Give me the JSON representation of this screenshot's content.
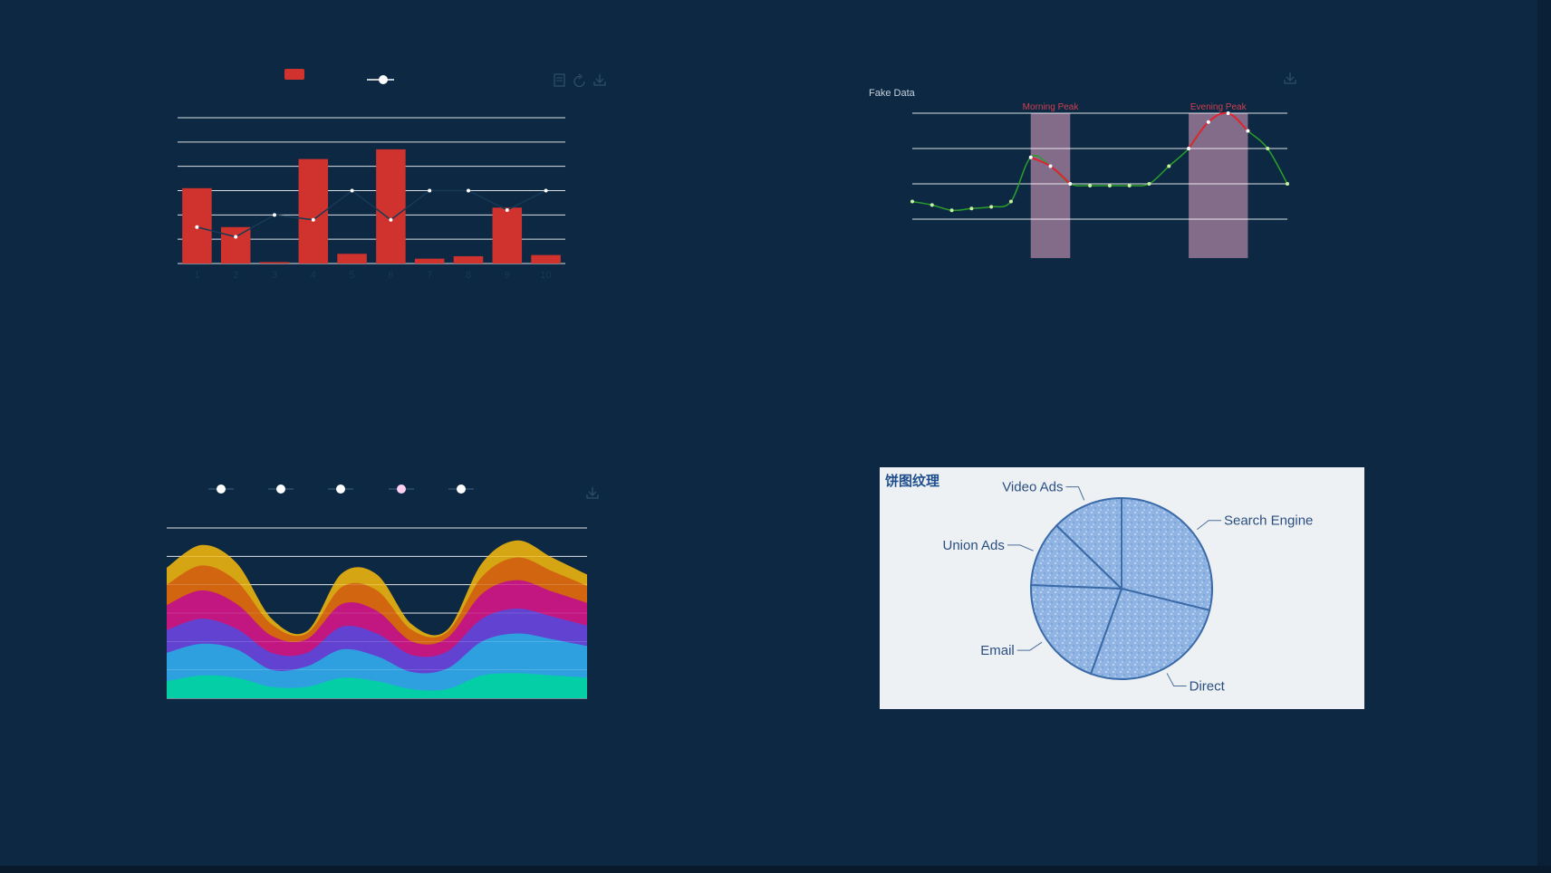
{
  "colors": {
    "background": "#0c2843",
    "bar_red": "#d0322e",
    "line_dark": "#173a55",
    "line_green": "#2aa02a",
    "line_red": "#e0242f",
    "mark_area": "#8a6f8e",
    "stream": [
      "#00d1a0",
      "#2aa8e0",
      "#5a48d8",
      "#c0108a",
      "#d06010",
      "#e8b010"
    ],
    "pie_fill": "#8fb4e3",
    "pie_stroke": "#3a6aa8",
    "pie_bg": "#eef1f4"
  },
  "toolbar_icons": [
    "data-view-icon",
    "restore-icon",
    "save-image-icon"
  ],
  "chart_data": [
    {
      "type": "bar",
      "categories": [
        "1",
        "2",
        "3",
        "4",
        "5",
        "6",
        "7",
        "8",
        "9",
        "10"
      ],
      "series": [
        {
          "type": "bar",
          "values": [
            31,
            15,
            0.6,
            43,
            4,
            47,
            2,
            3,
            23,
            3.5
          ]
        },
        {
          "type": "line",
          "values": [
            15,
            11,
            20,
            18,
            30,
            18,
            30,
            30,
            22,
            30
          ]
        }
      ],
      "ylim": [
        0,
        60
      ],
      "grid": true,
      "legend": "top-center"
    },
    {
      "type": "line",
      "title": "",
      "ylabel": "Fake Data",
      "x": [
        0,
        1,
        2,
        3,
        4,
        5,
        6,
        7,
        8,
        9,
        10,
        11,
        12,
        13,
        14,
        15,
        16,
        17,
        18,
        19
      ],
      "values": [
        300,
        280,
        250,
        260,
        270,
        300,
        550,
        500,
        400,
        390,
        390,
        390,
        400,
        500,
        600,
        750,
        800,
        700,
        600,
        400
      ],
      "ylim": [
        0,
        800
      ],
      "mark_areas": [
        {
          "label": "Morning Peak",
          "from": 6,
          "to": 8
        },
        {
          "label": "Evening Peak",
          "from": 14,
          "to": 17
        }
      ],
      "grid": true
    },
    {
      "type": "area",
      "x": [
        0,
        1,
        2,
        3,
        4,
        5,
        6,
        7,
        8,
        9,
        10,
        11,
        12
      ],
      "series": [
        {
          "values": [
            15,
            20,
            18,
            10,
            10,
            18,
            15,
            8,
            8,
            20,
            22,
            20,
            18
          ]
        },
        {
          "values": [
            25,
            28,
            25,
            15,
            18,
            25,
            22,
            15,
            18,
            30,
            35,
            32,
            28
          ]
        },
        {
          "values": [
            20,
            22,
            18,
            15,
            12,
            20,
            20,
            15,
            15,
            20,
            22,
            20,
            18
          ]
        },
        {
          "values": [
            22,
            25,
            22,
            15,
            12,
            20,
            20,
            12,
            12,
            22,
            25,
            22,
            20
          ]
        },
        {
          "values": [
            18,
            22,
            20,
            10,
            5,
            15,
            18,
            10,
            5,
            15,
            20,
            18,
            15
          ]
        },
        {
          "values": [
            15,
            18,
            16,
            5,
            2,
            12,
            14,
            5,
            2,
            12,
            15,
            12,
            10
          ]
        }
      ],
      "ylim": [
        0,
        150
      ],
      "grid": true,
      "legend": "top-center"
    },
    {
      "type": "pie",
      "title": "饼图纹理",
      "categories": [
        "Search Engine",
        "Direct",
        "Email",
        "Union Ads",
        "Video Ads"
      ],
      "values": [
        335,
        310,
        234,
        135,
        148
      ]
    }
  ]
}
